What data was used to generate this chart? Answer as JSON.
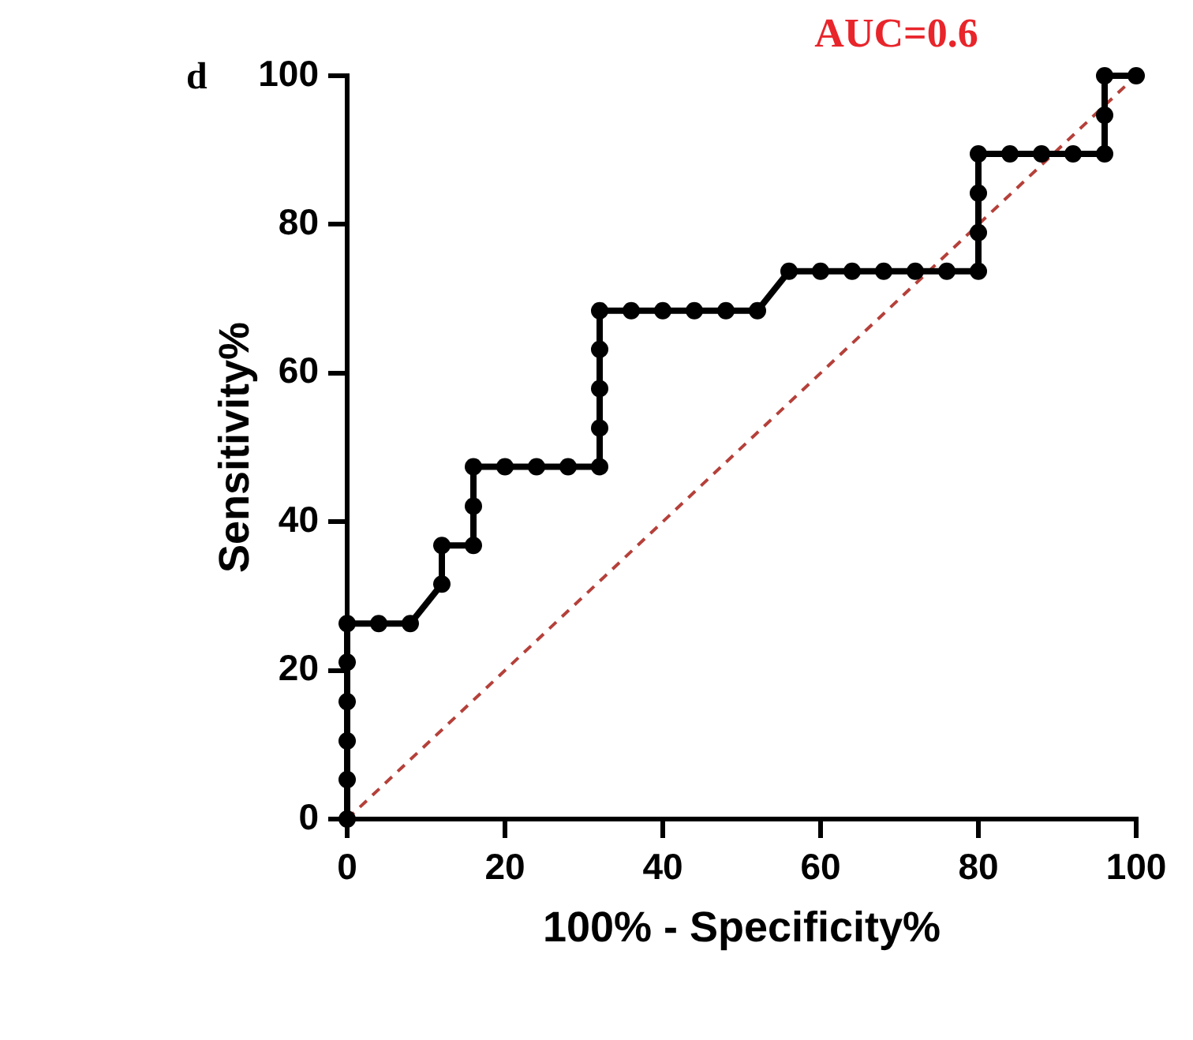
{
  "chart_data": {
    "type": "line",
    "title": "d",
    "xlabel": "100% - Specificity%",
    "ylabel": "Sensitivity%",
    "annotations": [
      "AUC=0.6"
    ],
    "xlim": [
      0,
      100
    ],
    "xticks": [
      0,
      20,
      40,
      60,
      80,
      100
    ],
    "ylim": [
      0,
      100
    ],
    "yticks": [
      0,
      20,
      40,
      60,
      80,
      100
    ],
    "grid": false,
    "legend": false,
    "series": [
      {
        "color": "#000000",
        "marker": "circle",
        "line_style": "solid",
        "x": [
          0,
          0,
          0,
          0,
          0,
          0,
          4,
          8,
          12,
          12,
          16,
          16,
          16,
          20,
          24,
          28,
          32,
          32,
          32,
          32,
          32,
          36,
          40,
          44,
          48,
          52,
          56,
          60,
          64,
          68,
          72,
          76,
          80,
          80,
          80,
          80,
          84,
          88,
          92,
          96,
          96,
          96,
          100
        ],
        "values": [
          0,
          5.3,
          10.5,
          15.8,
          21.1,
          26.3,
          26.3,
          26.3,
          31.6,
          36.8,
          36.8,
          42.1,
          47.4,
          47.4,
          47.4,
          47.4,
          47.4,
          52.6,
          57.9,
          63.2,
          68.4,
          68.4,
          68.4,
          68.4,
          68.4,
          68.4,
          73.7,
          73.7,
          73.7,
          73.7,
          73.7,
          73.7,
          73.7,
          78.9,
          84.2,
          89.5,
          89.5,
          89.5,
          89.5,
          89.5,
          94.7,
          100,
          100
        ]
      },
      {
        "color": "#b5403a",
        "marker": "none",
        "line_style": "dashed",
        "x": [
          0,
          100
        ],
        "values": [
          0,
          100
        ]
      }
    ]
  }
}
